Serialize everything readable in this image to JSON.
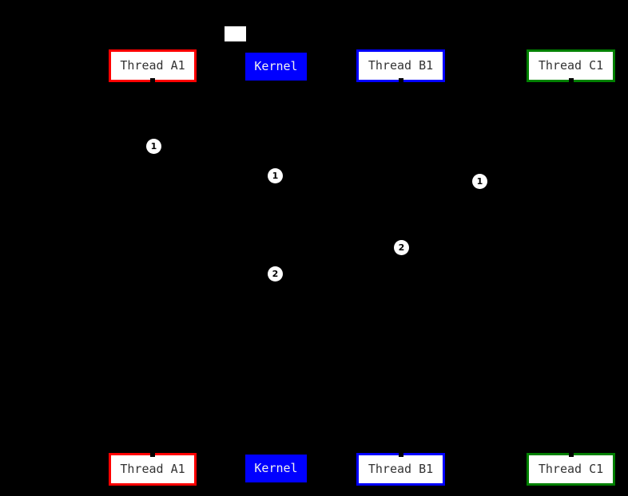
{
  "diagram": {
    "type": "sequence-diagram",
    "background_color": "#000000",
    "participants": [
      {
        "id": "thread-a1",
        "label": "Thread A1",
        "accent_color": "#ff0000",
        "fill_color": "#ffffff",
        "text_color": "#333333"
      },
      {
        "id": "kernel",
        "label": "Kernel",
        "accent_color": "#0000ff",
        "fill_color": "#0000ff",
        "text_color": "#ffffff"
      },
      {
        "id": "thread-b1",
        "label": "Thread B1",
        "accent_color": "#0000ff",
        "fill_color": "#ffffff",
        "text_color": "#333333"
      },
      {
        "id": "thread-c1",
        "label": "Thread C1",
        "accent_color": "#008000",
        "fill_color": "#ffffff",
        "text_color": "#333333"
      }
    ],
    "sequence_markers": [
      {
        "value": "1"
      },
      {
        "value": "1"
      },
      {
        "value": "1"
      },
      {
        "value": "2"
      },
      {
        "value": "2"
      }
    ],
    "marker_style": {
      "fill": "#ffffff",
      "text_color": "#000000"
    }
  }
}
